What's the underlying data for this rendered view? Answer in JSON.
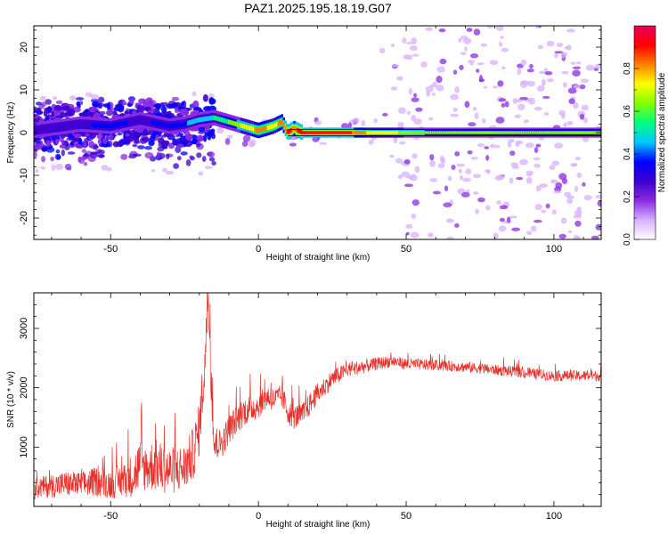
{
  "figure": {
    "title": "PAZ1.2025.195.18.19.G07"
  },
  "chart_data": [
    {
      "type": "heatmap",
      "xlabel": "Height of straight line (km)",
      "ylabel": "Frequency (Hz)",
      "xlim": [
        -76,
        116
      ],
      "ylim": [
        -25,
        25
      ],
      "xticks": [
        -50,
        0,
        50,
        100
      ],
      "yticks": [
        -20,
        -10,
        0,
        10,
        20
      ],
      "grid": false,
      "colorbar": {
        "label": "Normalized spectral amplitude",
        "ticks": [
          0.0,
          0.2,
          0.4,
          0.6,
          0.8
        ],
        "tick_labels": [
          "0.0",
          "0.2",
          "0.4",
          "0.6",
          "0.8"
        ],
        "range": [
          0,
          1
        ],
        "colormap": [
          "#ffffff",
          "#d8b0ff",
          "#8a2be2",
          "#3c00d0",
          "#0000ff",
          "#00c8ff",
          "#00ff80",
          "#80ff00",
          "#ffff00",
          "#ff8000",
          "#ff0000",
          "#e8005a"
        ]
      },
      "ridge": {
        "description_free": true,
        "x": [
          -76,
          -60,
          -50,
          -40,
          -30,
          -25,
          -20,
          -15,
          -10,
          -5,
          0,
          5,
          8,
          10,
          12,
          15,
          20,
          30,
          40,
          60,
          80,
          100,
          116
        ],
        "frequency": [
          0.5,
          2.0,
          1.5,
          3.0,
          1.5,
          2.0,
          3.0,
          3.5,
          2.5,
          1.5,
          0.5,
          1.5,
          2.5,
          0.0,
          1.0,
          0.0,
          0.0,
          0.0,
          0.0,
          0.0,
          0.0,
          0.0,
          0.0
        ],
        "amplitude": [
          0.3,
          0.3,
          0.35,
          0.3,
          0.35,
          0.4,
          0.45,
          0.5,
          0.6,
          0.7,
          0.8,
          0.75,
          0.8,
          0.9,
          0.85,
          0.9,
          0.9,
          0.9,
          0.7,
          0.65,
          0.65,
          0.6,
          0.6
        ]
      }
    },
    {
      "type": "line",
      "xlabel": "Height of straight line (km)",
      "ylabel": "SNR (10 * v/v)",
      "xlim": [
        -76,
        116
      ],
      "ylim": [
        0,
        3600
      ],
      "xticks": [
        -50,
        0,
        50,
        100
      ],
      "yticks": [
        1000,
        2000,
        3000
      ],
      "grid": false,
      "series": [
        {
          "color": "#e8302a",
          "x": [
            -76,
            -70,
            -65,
            -60,
            -55,
            -50,
            -45,
            -42,
            -40,
            -38,
            -35,
            -30,
            -25,
            -22,
            -20,
            -18,
            -17,
            -16,
            -15,
            -12,
            -10,
            -5,
            0,
            3,
            5,
            8,
            10,
            12,
            15,
            20,
            25,
            30,
            35,
            40,
            45,
            50,
            60,
            70,
            80,
            90,
            100,
            110,
            116
          ],
          "values": [
            300,
            350,
            380,
            360,
            420,
            380,
            450,
            550,
            700,
            650,
            700,
            600,
            650,
            900,
            1300,
            2500,
            3600,
            2200,
            1000,
            1100,
            1300,
            1600,
            1700,
            1850,
            1800,
            1850,
            1600,
            1500,
            1550,
            1900,
            2150,
            2300,
            2350,
            2400,
            2450,
            2400,
            2380,
            2350,
            2300,
            2250,
            2200,
            2200,
            2200
          ],
          "spread": [
            180,
            200,
            220,
            220,
            250,
            250,
            300,
            400,
            450,
            400,
            450,
            400,
            400,
            450,
            450,
            500,
            200,
            500,
            250,
            250,
            250,
            250,
            220,
            200,
            200,
            200,
            220,
            200,
            200,
            180,
            150,
            130,
            120,
            110,
            100,
            100,
            90,
            90,
            90,
            90,
            90,
            90,
            90
          ]
        }
      ]
    }
  ]
}
